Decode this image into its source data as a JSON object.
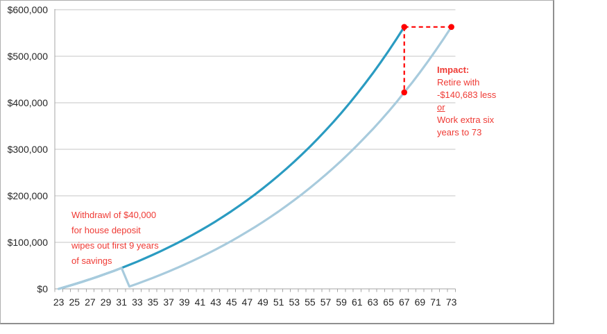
{
  "colors": {
    "series_dark": "#2A9BC1",
    "series_light": "#A8CBDD",
    "marker_red": "#FF0000",
    "annotation_red": "#EF3A34",
    "gridline": "#C6C6C6",
    "axis": "#A6A6A6",
    "axis_text": "#262626"
  },
  "chart_data": {
    "type": "line",
    "title": "",
    "x_start_age": 23,
    "x_end_age": 73,
    "x_tick_labels": [
      "23",
      "25",
      "27",
      "29",
      "31",
      "33",
      "35",
      "37",
      "39",
      "41",
      "43",
      "45",
      "47",
      "49",
      "51",
      "53",
      "55",
      "57",
      "59",
      "61",
      "63",
      "65",
      "67",
      "69",
      "71",
      "73"
    ],
    "ylim": [
      0,
      600000
    ],
    "grid": true,
    "y_ticks": [
      {
        "value": 600000,
        "label": "$600,000"
      },
      {
        "value": 500000,
        "label": "$500,000"
      },
      {
        "value": 400000,
        "label": "$400,000"
      },
      {
        "value": 300000,
        "label": "$300,000"
      },
      {
        "value": 200000,
        "label": "$200,000"
      },
      {
        "value": 100000,
        "label": "$100,000"
      },
      {
        "value": 0,
        "label": "$0"
      }
    ],
    "series": [
      {
        "id": "savings-uninterrupted-curve",
        "color_key": "series_dark",
        "start_age": 23,
        "end_age": 67,
        "values": [
          0,
          4878,
          9952,
          15228,
          20715,
          26421,
          32356,
          38528,
          44948,
          51624,
          58567,
          65788,
          73298,
          81108,
          89231,
          97678,
          106463,
          115600,
          125102,
          134985,
          145262,
          155952,
          167068,
          178629,
          190652,
          203156,
          216161,
          229685,
          243751,
          258378,
          273592,
          289413,
          305868,
          322980,
          340777,
          359287,
          378536,
          398556,
          419377,
          441031,
          463550,
          486971,
          511327,
          536658,
          563000
        ]
      },
      {
        "id": "savings-after-withdrawal-curve",
        "color_key": "series_light",
        "start_age": 23,
        "end_age": 73,
        "values": [
          0,
          4878,
          9952,
          15228,
          20715,
          26421,
          32356,
          38528,
          44948,
          5000,
          11009,
          17240,
          23703,
          30403,
          37352,
          44558,
          52031,
          59780,
          67816,
          76149,
          84791,
          93751,
          103045,
          112681,
          122675,
          133038,
          143784,
          154928,
          166485,
          178468,
          190895,
          203783,
          217146,
          231005,
          245376,
          260279,
          275733,
          291760,
          308378,
          325613,
          343484,
          362018,
          381236,
          401166,
          422317,
          443265,
          465489,
          488537,
          512437,
          537221,
          563000
        ]
      }
    ],
    "markers": [
      {
        "age": 67,
        "value": 563000
      },
      {
        "age": 67,
        "value": 422317
      },
      {
        "age": 73,
        "value": 563000
      }
    ],
    "connectors": [
      {
        "x1_age": 67,
        "y1_value": 563000,
        "x2_age": 67,
        "y2_value": 422317
      },
      {
        "x1_age": 67,
        "y1_value": 563000,
        "x2_age": 73,
        "y2_value": 563000
      }
    ]
  },
  "annotations": {
    "withdrawal": {
      "lines": [
        "Withdrawl of $40,000",
        "for house deposit",
        "wipes out first 9 years",
        "of savings"
      ]
    },
    "impact": {
      "lines": [
        "Impact:",
        "Retire with",
        "-$140,683 less",
        "or",
        "Work extra six",
        "years to 73"
      ]
    }
  }
}
